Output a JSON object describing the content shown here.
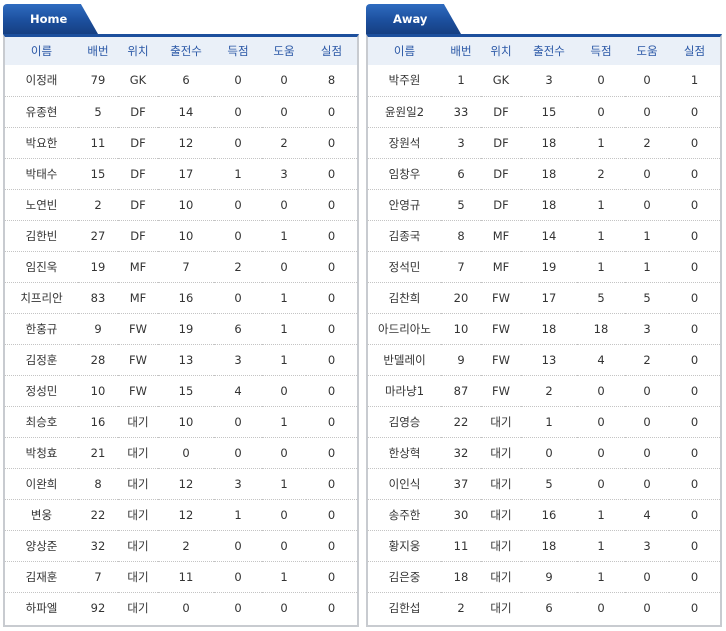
{
  "headers": [
    "이름",
    "배번",
    "위치",
    "출전수",
    "득점",
    "도움",
    "실점"
  ],
  "home": {
    "tab_label": "Home",
    "players": [
      [
        "이정래",
        "79",
        "GK",
        "6",
        "0",
        "0",
        "8"
      ],
      [
        "유종현",
        "5",
        "DF",
        "14",
        "0",
        "0",
        "0"
      ],
      [
        "박요한",
        "11",
        "DF",
        "12",
        "0",
        "2",
        "0"
      ],
      [
        "박태수",
        "15",
        "DF",
        "17",
        "1",
        "3",
        "0"
      ],
      [
        "노연빈",
        "2",
        "DF",
        "10",
        "0",
        "0",
        "0"
      ],
      [
        "김한빈",
        "27",
        "DF",
        "10",
        "0",
        "1",
        "0"
      ],
      [
        "임진욱",
        "19",
        "MF",
        "7",
        "2",
        "0",
        "0"
      ],
      [
        "치프리안",
        "83",
        "MF",
        "16",
        "0",
        "1",
        "0"
      ],
      [
        "한홍규",
        "9",
        "FW",
        "19",
        "6",
        "1",
        "0"
      ],
      [
        "김정훈",
        "28",
        "FW",
        "13",
        "3",
        "1",
        "0"
      ],
      [
        "정성민",
        "10",
        "FW",
        "15",
        "4",
        "0",
        "0"
      ],
      [
        "최승호",
        "16",
        "대기",
        "10",
        "0",
        "1",
        "0"
      ],
      [
        "박청효",
        "21",
        "대기",
        "0",
        "0",
        "0",
        "0"
      ],
      [
        "이완희",
        "8",
        "대기",
        "12",
        "3",
        "1",
        "0"
      ],
      [
        "변웅",
        "22",
        "대기",
        "12",
        "1",
        "0",
        "0"
      ],
      [
        "양상준",
        "32",
        "대기",
        "2",
        "0",
        "0",
        "0"
      ],
      [
        "김재훈",
        "7",
        "대기",
        "11",
        "0",
        "1",
        "0"
      ],
      [
        "하파엘",
        "92",
        "대기",
        "0",
        "0",
        "0",
        "0"
      ]
    ]
  },
  "away": {
    "tab_label": "Away",
    "players": [
      [
        "박주원",
        "1",
        "GK",
        "3",
        "0",
        "0",
        "1"
      ],
      [
        "윤원일2",
        "33",
        "DF",
        "15",
        "0",
        "0",
        "0"
      ],
      [
        "장원석",
        "3",
        "DF",
        "18",
        "1",
        "2",
        "0"
      ],
      [
        "임창우",
        "6",
        "DF",
        "18",
        "2",
        "0",
        "0"
      ],
      [
        "안영규",
        "5",
        "DF",
        "18",
        "1",
        "0",
        "0"
      ],
      [
        "김종국",
        "8",
        "MF",
        "14",
        "1",
        "1",
        "0"
      ],
      [
        "정석민",
        "7",
        "MF",
        "19",
        "1",
        "1",
        "0"
      ],
      [
        "김찬희",
        "20",
        "FW",
        "17",
        "5",
        "5",
        "0"
      ],
      [
        "아드리아노",
        "10",
        "FW",
        "18",
        "18",
        "3",
        "0"
      ],
      [
        "반델레이",
        "9",
        "FW",
        "13",
        "4",
        "2",
        "0"
      ],
      [
        "마라냥1",
        "87",
        "FW",
        "2",
        "0",
        "0",
        "0"
      ],
      [
        "김영승",
        "22",
        "대기",
        "1",
        "0",
        "0",
        "0"
      ],
      [
        "한상혁",
        "32",
        "대기",
        "0",
        "0",
        "0",
        "0"
      ],
      [
        "이인식",
        "37",
        "대기",
        "5",
        "0",
        "0",
        "0"
      ],
      [
        "송주한",
        "30",
        "대기",
        "16",
        "1",
        "4",
        "0"
      ],
      [
        "황지웅",
        "11",
        "대기",
        "18",
        "1",
        "3",
        "0"
      ],
      [
        "김은중",
        "18",
        "대기",
        "9",
        "1",
        "0",
        "0"
      ],
      [
        "김한섭",
        "2",
        "대기",
        "6",
        "0",
        "0",
        "0"
      ]
    ]
  }
}
